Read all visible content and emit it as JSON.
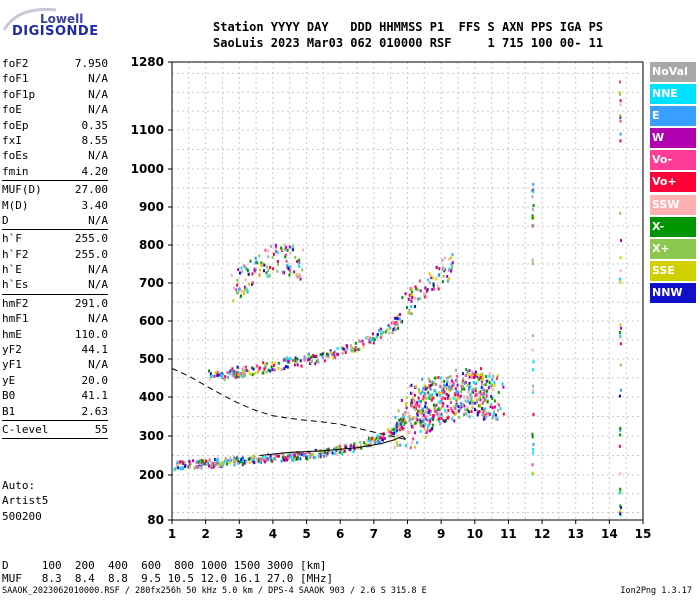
{
  "logo": {
    "line1": "Lowell",
    "line2": "DIGISONDE"
  },
  "header": {
    "line1": "Station YYYY DAY   DDD HHMMSS P1  FFS S AXN PPS IGA PS",
    "line2": "SaoLuis 2023 Mar03 062 010000 RSF     1 715 100 00- 11"
  },
  "params_groups": [
    [
      {
        "key": "foF2",
        "value": "7.950"
      },
      {
        "key": "foF1",
        "value": "N/A"
      },
      {
        "key": "foF1p",
        "value": "N/A"
      },
      {
        "key": "foE",
        "value": "N/A"
      },
      {
        "key": "foEp",
        "value": "0.35"
      },
      {
        "key": "fxI",
        "value": "8.55"
      },
      {
        "key": "foEs",
        "value": "N/A"
      },
      {
        "key": "fmin",
        "value": "4.20"
      }
    ],
    [
      {
        "key": "MUF(D)",
        "value": "27.00"
      },
      {
        "key": "M(D)",
        "value": "3.40"
      },
      {
        "key": "D",
        "value": "N/A"
      }
    ],
    [
      {
        "key": "h`F",
        "value": "255.0"
      },
      {
        "key": "h`F2",
        "value": "255.0"
      },
      {
        "key": "h`E",
        "value": "N/A"
      },
      {
        "key": "h`Es",
        "value": "N/A"
      }
    ],
    [
      {
        "key": "hmF2",
        "value": "291.0"
      },
      {
        "key": "hmF1",
        "value": "N/A"
      },
      {
        "key": "hmE",
        "value": "110.0"
      },
      {
        "key": "yF2",
        "value": "44.1"
      },
      {
        "key": "yF1",
        "value": "N/A"
      },
      {
        "key": "yE",
        "value": "20.0"
      },
      {
        "key": "B0",
        "value": "41.1"
      },
      {
        "key": "B1",
        "value": "2.63"
      }
    ],
    [
      {
        "key": "C-level",
        "value": "55"
      }
    ]
  ],
  "auto": {
    "line1": "Auto:",
    "line2": "Artist5",
    "line3": "500200"
  },
  "muf_table": {
    "d_line": "D     100  200  400  600  800 1000 1500 3000 [km]",
    "muf_line": "MUF   8.3  8.4  8.8  9.5 10.5 12.0 16.1 27.0 [MHz]"
  },
  "footer": {
    "left": "SAAOK_2023062010000.RSF / 280fx256h 50 kHz 5.0 km / DPS-4 SAAOK 903 / 2.6 S 315.8 E",
    "right": "Ion2Png 1.3.17"
  },
  "legend": [
    {
      "label": "NoVal",
      "bg": "#a8a8a8",
      "fg": "#ffffff"
    },
    {
      "label": "NNE",
      "bg": "#00e0ff",
      "fg": "#ffffff"
    },
    {
      "label": "E",
      "bg": "#3aa0ff",
      "fg": "#ffffff"
    },
    {
      "label": "W",
      "bg": "#b000b0",
      "fg": "#ffffff"
    },
    {
      "label": "Vo-",
      "bg": "#ff3c96",
      "fg": "#ffffff"
    },
    {
      "label": "Vo+",
      "bg": "#ff0038",
      "fg": "#ffffff"
    },
    {
      "label": "SSW",
      "bg": "#ffb0b0",
      "fg": "#ffffff"
    },
    {
      "label": "X-",
      "bg": "#009400",
      "fg": "#ffffff"
    },
    {
      "label": "X+",
      "bg": "#8cc850",
      "fg": "#ffffff"
    },
    {
      "label": "SSE",
      "bg": "#d0d000",
      "fg": "#ffffff"
    },
    {
      "label": "NNW",
      "bg": "#1010c8",
      "fg": "#ffffff"
    }
  ],
  "chart_data": {
    "type": "scatter",
    "x_ticks": [
      1,
      2,
      3,
      4,
      5,
      6,
      7,
      8,
      9,
      10,
      11,
      12,
      13,
      14,
      15
    ],
    "y_ticks": [
      80,
      200,
      300,
      400,
      500,
      600,
      700,
      800,
      900,
      1000,
      1100,
      1280
    ],
    "xlim": [
      1,
      15
    ],
    "ylim": [
      80,
      1280
    ],
    "grid": true,
    "traces": [
      {
        "name": "O-F2 1st hop",
        "points": [
          [
            1.0,
            225
          ],
          [
            1.5,
            230
          ],
          [
            2.0,
            232
          ],
          [
            2.5,
            236
          ],
          [
            3.0,
            240
          ],
          [
            3.5,
            244
          ],
          [
            4.0,
            248
          ],
          [
            4.5,
            251
          ],
          [
            5.0,
            254
          ],
          [
            5.5,
            260
          ],
          [
            6.0,
            268
          ],
          [
            6.5,
            278
          ],
          [
            7.0,
            292
          ],
          [
            7.5,
            315
          ],
          [
            7.8,
            335
          ],
          [
            7.95,
            360
          ]
        ]
      },
      {
        "name": "O-F2 2nd hop",
        "points": [
          [
            2.0,
            458
          ],
          [
            2.5,
            462
          ],
          [
            3.0,
            470
          ],
          [
            3.5,
            478
          ],
          [
            4.0,
            486
          ],
          [
            4.5,
            494
          ],
          [
            5.0,
            502
          ],
          [
            5.5,
            512
          ],
          [
            6.0,
            524
          ],
          [
            6.5,
            540
          ],
          [
            7.0,
            562
          ],
          [
            7.5,
            585
          ],
          [
            7.8,
            610
          ]
        ]
      },
      {
        "name": "O-F2 3rd hop",
        "points": [
          [
            2.8,
            690
          ],
          [
            3.2,
            720
          ],
          [
            3.6,
            750
          ],
          [
            4.0,
            765
          ],
          [
            4.4,
            770
          ],
          [
            4.8,
            750
          ]
        ]
      },
      {
        "name": "X-F2 upper",
        "points": [
          [
            7.9,
            640
          ],
          [
            8.2,
            670
          ],
          [
            8.6,
            700
          ],
          [
            9.0,
            730
          ],
          [
            9.3,
            750
          ]
        ]
      },
      {
        "name": "X spread",
        "points": [
          [
            7.8,
            320
          ],
          [
            8.2,
            360
          ],
          [
            8.6,
            390
          ],
          [
            9.0,
            400
          ],
          [
            9.4,
            410
          ],
          [
            9.8,
            420
          ],
          [
            10.2,
            410
          ],
          [
            10.6,
            400
          ]
        ]
      },
      {
        "name": "Vertical spike 14.3",
        "points": [
          [
            14.3,
            100
          ],
          [
            14.3,
            130
          ],
          [
            14.3,
            490
          ],
          [
            14.3,
            720
          ],
          [
            14.3,
            780
          ],
          [
            14.3,
            1130
          ],
          [
            14.3,
            1250
          ]
        ]
      },
      {
        "name": "Vertical spike 11.7",
        "points": [
          [
            11.7,
            200
          ],
          [
            11.7,
            320
          ],
          [
            11.7,
            700
          ],
          [
            11.7,
            840
          ],
          [
            11.7,
            900
          ],
          [
            11.7,
            960
          ]
        ]
      }
    ],
    "model_curves": [
      {
        "name": "profile solid",
        "style": "solid",
        "points": [
          [
            3.6,
            250
          ],
          [
            4.5,
            258
          ],
          [
            5.5,
            262
          ],
          [
            6.5,
            270
          ],
          [
            7.2,
            280
          ],
          [
            7.6,
            290
          ],
          [
            7.85,
            300
          ],
          [
            7.95,
            291
          ]
        ]
      },
      {
        "name": "profile dashed",
        "style": "dashed",
        "points": [
          [
            1.0,
            475
          ],
          [
            1.5,
            455
          ],
          [
            2.0,
            430
          ],
          [
            2.5,
            405
          ],
          [
            3.0,
            383
          ],
          [
            3.5,
            365
          ],
          [
            4.0,
            352
          ],
          [
            4.5,
            345
          ],
          [
            5.0,
            340
          ],
          [
            5.5,
            336
          ],
          [
            6.0,
            330
          ],
          [
            6.5,
            320
          ],
          [
            7.0,
            310
          ],
          [
            7.5,
            300
          ],
          [
            7.95,
            291
          ]
        ]
      }
    ]
  }
}
